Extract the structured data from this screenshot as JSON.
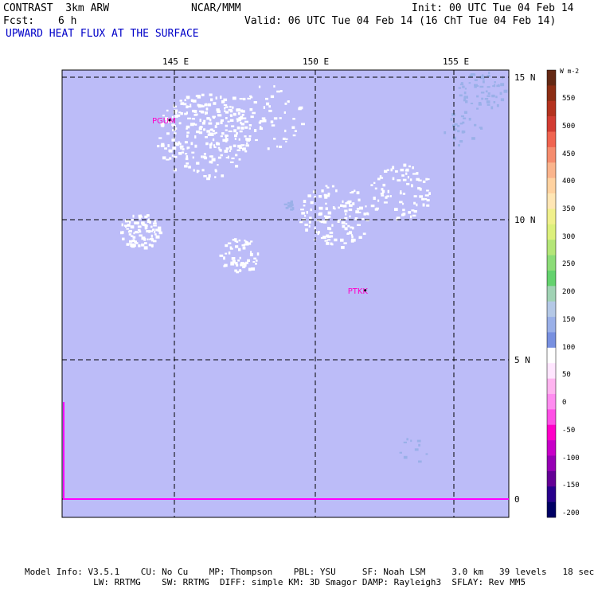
{
  "header": {
    "model": "CONTRAST  3km ARW",
    "org": "NCAR/MMM",
    "init": "Init: 00 UTC Tue 04 Feb 14",
    "fcst_label": "Fcst:",
    "fcst_value": "6 h",
    "valid": "Valid: 06 UTC Tue 04 Feb 14 (16 ChT Tue 04 Feb 14)",
    "field": "UPWARD HEAT FLUX AT THE SURFACE"
  },
  "map": {
    "lon_labels": [
      "145 E",
      "150 E",
      "155 E"
    ],
    "lat_labels": [
      "15 N",
      "10 N",
      "5 N",
      "0"
    ],
    "stations": [
      {
        "id": "PGUM",
        "lon": 144.8,
        "lat": 13.5
      },
      {
        "id": "PTKK",
        "lon": 151.8,
        "lat": 7.45
      }
    ],
    "background_color": "#bcbcf8",
    "coast_color": "#ff00ff",
    "station_color": "#ff00c8"
  },
  "colorbar": {
    "units": "W m-2",
    "labels": [
      "550",
      "500",
      "450",
      "400",
      "350",
      "300",
      "250",
      "200",
      "150",
      "100",
      "50",
      "0",
      "-50",
      "-100",
      "-150",
      "-200"
    ],
    "colors": [
      "#642814",
      "#8c2d14",
      "#b4321e",
      "#d23c32",
      "#f06450",
      "#f58c6e",
      "#fab48c",
      "#ffd2a0",
      "#ffe6b4",
      "#f0f08c",
      "#dcf07c",
      "#b4e678",
      "#8cdc78",
      "#64d26e",
      "#a0d2b4",
      "#b4c8e6",
      "#9ab0e8",
      "#7890e0",
      "#ffffff",
      "#ffe6ff",
      "#ffb4f0",
      "#ff8cf0",
      "#ff50e6",
      "#ff00c8",
      "#c800c8",
      "#9600b4",
      "#640096",
      "#28008c",
      "#000064"
    ]
  },
  "footer": {
    "line1": "Model Info: V3.5.1    CU: No Cu    MP: Thompson    PBL: YSU     SF: Noah LSM     3.0 km   39 levels   18 sec",
    "line2": "             LW: RRTMG    SW: RRTMG  DIFF: simple KM: 3D Smagor DAMP: Rayleigh3  SFLAY: Rev MM5"
  }
}
